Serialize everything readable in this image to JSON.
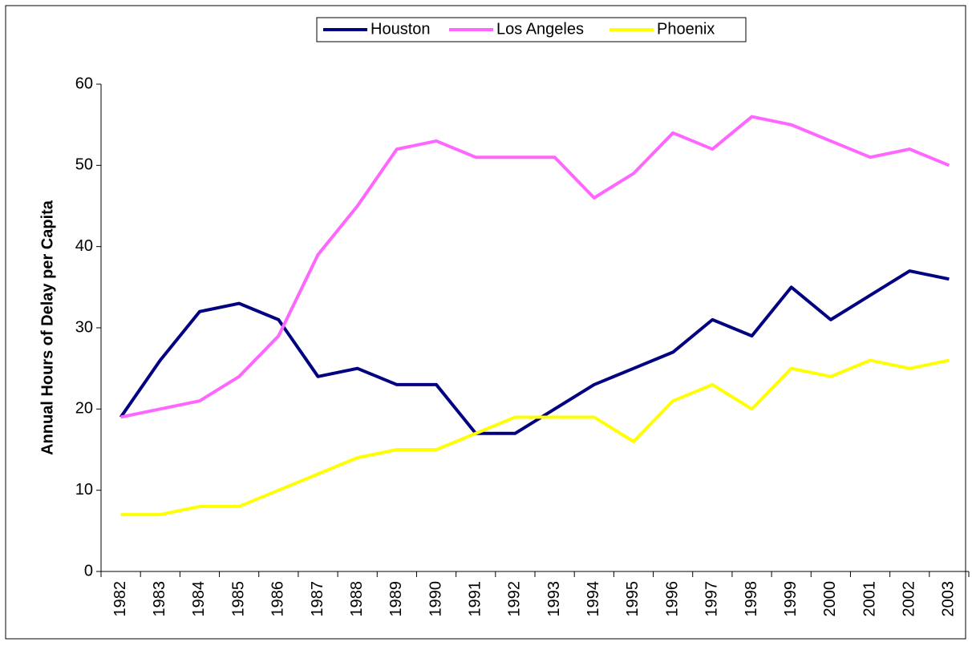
{
  "chart_data": {
    "type": "line",
    "y_label": "Annual Hours of Delay per Capita",
    "categories": [
      "1982",
      "1983",
      "1984",
      "1985",
      "1986",
      "1987",
      "1988",
      "1989",
      "1990",
      "1991",
      "1992",
      "1993",
      "1994",
      "1995",
      "1996",
      "1997",
      "1998",
      "1999",
      "2000",
      "2001",
      "2002",
      "2003"
    ],
    "series": [
      {
        "name": "Houston",
        "color": "#000080",
        "values": [
          19,
          26,
          32,
          33,
          31,
          24,
          25,
          23,
          23,
          17,
          17,
          20,
          23,
          25,
          27,
          31,
          29,
          35,
          31,
          34,
          37,
          36
        ]
      },
      {
        "name": "Los Angeles",
        "color": "#ff66ff",
        "values": [
          19,
          20,
          21,
          24,
          29,
          39,
          45,
          52,
          53,
          51,
          51,
          51,
          46,
          49,
          54,
          52,
          56,
          55,
          53,
          51,
          52,
          50
        ]
      },
      {
        "name": "Phoenix",
        "color": "#ffff00",
        "values": [
          7,
          7,
          8,
          8,
          10,
          12,
          14,
          15,
          15,
          17,
          19,
          19,
          19,
          16,
          21,
          23,
          20,
          25,
          24,
          26,
          25,
          26
        ]
      }
    ],
    "ylim": [
      0,
      60
    ],
    "yticks": [
      0,
      10,
      20,
      30,
      40,
      50,
      60
    ],
    "grid": false,
    "legend": "top"
  }
}
